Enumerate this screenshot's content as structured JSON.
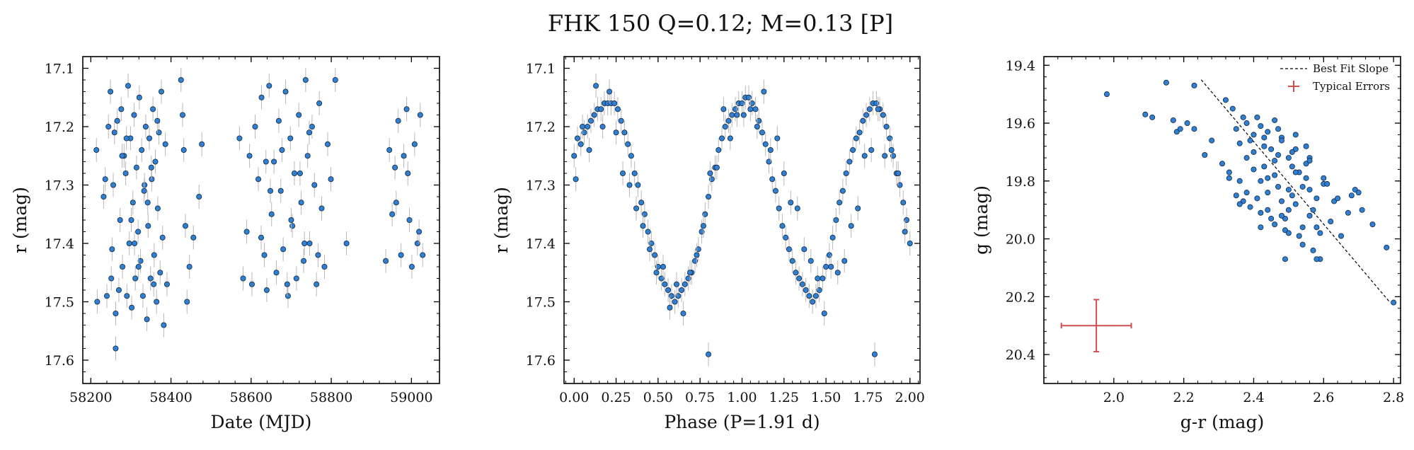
{
  "suptitle": "FHK 150  Q=0.12; M=0.13 [P]",
  "colors": {
    "point": "#2f7fd3",
    "error_bar": "#b8b8b8",
    "typical_error": "#d05050",
    "fit_line": "#000000"
  },
  "chart_data": [
    {
      "type": "scatter",
      "panel": "left",
      "xlabel": "Date (MJD)",
      "ylabel": "r (mag)",
      "xlim": [
        58180,
        59070
      ],
      "ylim": [
        17.64,
        17.08
      ],
      "y_inverted": true,
      "xticks": [
        58200,
        58400,
        58600,
        58800,
        59000
      ],
      "yticks": [
        17.1,
        17.2,
        17.3,
        17.4,
        17.5,
        17.6
      ],
      "x": [
        58214,
        58216,
        58232,
        58236,
        58240,
        58244,
        58249,
        58251,
        58253,
        58256,
        58259,
        58262,
        58266,
        58270,
        58273,
        58276,
        58279,
        58283,
        58287,
        58290,
        58293,
        58296,
        58299,
        58302,
        58305,
        58308,
        58311,
        58314,
        58318,
        58321,
        58324,
        58327,
        58330,
        58334,
        58337,
        58340,
        58343,
        58346,
        58349,
        58352,
        58355,
        58358,
        58361,
        58364,
        58367,
        58370,
        58373,
        58376,
        58379,
        58382,
        58386,
        58390,
        58262,
        58278,
        58301,
        58319,
        58333,
        58351,
        58366,
        58309,
        58342,
        58289,
        58357,
        58425,
        58429,
        58432,
        58436,
        58440,
        58446,
        58456,
        58470,
        58477,
        58571,
        58580,
        58589,
        58596,
        58602,
        58610,
        58618,
        58626,
        58633,
        58639,
        58645,
        58651,
        58657,
        58663,
        58669,
        58674,
        58680,
        58686,
        58692,
        58698,
        58703,
        58708,
        58713,
        58719,
        58725,
        58731,
        58736,
        58741,
        58746,
        58752,
        58758,
        58763,
        58770,
        58776,
        58783,
        58791,
        58799,
        58810,
        58625,
        58648,
        58677,
        58700,
        58722,
        58745,
        58767,
        58690,
        58637,
        58733,
        58838,
        58936,
        58945,
        58952,
        58959,
        58967,
        58974,
        58981,
        58988,
        58995,
        59001,
        59008,
        59015,
        59022,
        59028,
        58962,
        58991,
        59019
      ],
      "y": [
        17.24,
        17.5,
        17.32,
        17.29,
        17.49,
        17.2,
        17.14,
        17.46,
        17.41,
        17.3,
        17.21,
        17.52,
        17.19,
        17.48,
        17.36,
        17.17,
        17.44,
        17.25,
        17.28,
        17.49,
        17.13,
        17.4,
        17.22,
        17.51,
        17.33,
        17.18,
        17.46,
        17.27,
        17.38,
        17.15,
        17.43,
        17.24,
        17.49,
        17.3,
        17.2,
        17.53,
        17.37,
        17.22,
        17.46,
        17.29,
        17.17,
        17.42,
        17.26,
        17.5,
        17.34,
        17.21,
        17.45,
        17.14,
        17.39,
        17.54,
        17.23,
        17.47,
        17.58,
        17.25,
        17.36,
        17.44,
        17.31,
        17.27,
        17.19,
        17.4,
        17.33,
        17.22,
        17.47,
        17.12,
        17.18,
        17.24,
        17.37,
        17.5,
        17.44,
        17.39,
        17.32,
        17.23,
        17.22,
        17.46,
        17.38,
        17.25,
        17.47,
        17.2,
        17.29,
        17.15,
        17.42,
        17.48,
        17.13,
        17.35,
        17.26,
        17.45,
        17.19,
        17.31,
        17.41,
        17.14,
        17.49,
        17.22,
        17.37,
        17.28,
        17.46,
        17.18,
        17.33,
        17.43,
        17.12,
        17.25,
        17.4,
        17.2,
        17.3,
        17.47,
        17.16,
        17.34,
        17.44,
        17.23,
        17.29,
        17.12,
        17.39,
        17.31,
        17.24,
        17.36,
        17.28,
        17.21,
        17.42,
        17.47,
        17.26,
        17.4,
        17.4,
        17.43,
        17.24,
        17.35,
        17.27,
        17.19,
        17.42,
        17.25,
        17.17,
        17.36,
        17.44,
        17.23,
        17.4,
        17.18,
        17.42,
        17.33,
        17.28,
        17.38
      ]
    },
    {
      "type": "scatter",
      "panel": "middle",
      "xlabel": "Phase (P=1.91 d)",
      "ylabel": "r (mag)",
      "xlim": [
        -0.06,
        2.06
      ],
      "ylim": [
        17.64,
        17.08
      ],
      "y_inverted": true,
      "xticks": [
        0.0,
        0.25,
        0.5,
        0.75,
        1.0,
        1.25,
        1.5,
        1.75,
        2.0
      ],
      "xticklabels": [
        "0.00",
        "0.25",
        "0.50",
        "0.75",
        "1.00",
        "1.25",
        "1.50",
        "1.75",
        "2.00"
      ],
      "yticks": [
        17.1,
        17.2,
        17.3,
        17.4,
        17.5,
        17.6
      ],
      "x": [
        0.0,
        0.02,
        0.04,
        0.06,
        0.08,
        0.1,
        0.12,
        0.14,
        0.16,
        0.18,
        0.2,
        0.22,
        0.24,
        0.26,
        0.28,
        0.3,
        0.32,
        0.34,
        0.36,
        0.38,
        0.4,
        0.42,
        0.44,
        0.46,
        0.48,
        0.5,
        0.52,
        0.54,
        0.56,
        0.58,
        0.6,
        0.62,
        0.64,
        0.66,
        0.68,
        0.7,
        0.72,
        0.74,
        0.76,
        0.78,
        0.8,
        0.82,
        0.84,
        0.86,
        0.88,
        0.9,
        0.92,
        0.94,
        0.96,
        0.98,
        1.0,
        1.02,
        1.04,
        1.06,
        1.08,
        1.1,
        1.12,
        1.14,
        1.16,
        1.18,
        1.2,
        1.22,
        1.24,
        1.26,
        1.28,
        1.3,
        1.32,
        1.34,
        1.36,
        1.38,
        1.4,
        1.42,
        1.44,
        1.46,
        1.48,
        1.5,
        1.52,
        1.54,
        1.56,
        1.58,
        1.6,
        1.62,
        1.64,
        1.66,
        1.68,
        1.7,
        1.72,
        1.74,
        1.76,
        1.78,
        1.8,
        1.82,
        1.84,
        1.86,
        1.88,
        1.9,
        1.92,
        1.94,
        1.96,
        1.98,
        2.0,
        0.01,
        0.05,
        0.09,
        0.13,
        0.17,
        0.21,
        0.25,
        0.29,
        0.33,
        0.37,
        0.41,
        0.45,
        0.49,
        0.53,
        0.57,
        0.61,
        0.65,
        0.69,
        0.73,
        0.77,
        0.81,
        0.85,
        0.89,
        0.93,
        0.97,
        1.01,
        1.05,
        1.09,
        1.13,
        1.17,
        1.21,
        1.25,
        1.29,
        1.33,
        1.37,
        1.41,
        1.45,
        1.49,
        1.53,
        1.57,
        1.61,
        1.65,
        1.69,
        1.73,
        1.77,
        1.81,
        1.85,
        1.89,
        1.93,
        1.97,
        0.8,
        1.79
      ],
      "y": [
        17.25,
        17.22,
        17.23,
        17.21,
        17.2,
        17.19,
        17.18,
        17.17,
        17.17,
        17.16,
        17.16,
        17.16,
        17.16,
        17.17,
        17.19,
        17.21,
        17.23,
        17.25,
        17.28,
        17.3,
        17.33,
        17.35,
        17.38,
        17.4,
        17.42,
        17.44,
        17.46,
        17.47,
        17.48,
        17.49,
        17.5,
        17.49,
        17.48,
        17.47,
        17.46,
        17.45,
        17.43,
        17.41,
        17.38,
        17.35,
        17.32,
        17.29,
        17.27,
        17.24,
        17.22,
        17.2,
        17.19,
        17.18,
        17.17,
        17.16,
        17.16,
        17.15,
        17.15,
        17.16,
        17.17,
        17.19,
        17.21,
        17.23,
        17.26,
        17.29,
        17.31,
        17.34,
        17.37,
        17.39,
        17.41,
        17.43,
        17.45,
        17.46,
        17.47,
        17.48,
        17.49,
        17.5,
        17.49,
        17.48,
        17.46,
        17.44,
        17.42,
        17.39,
        17.36,
        17.33,
        17.31,
        17.28,
        17.26,
        17.24,
        17.22,
        17.21,
        17.19,
        17.18,
        17.17,
        17.16,
        17.16,
        17.17,
        17.18,
        17.2,
        17.22,
        17.25,
        17.28,
        17.3,
        17.33,
        17.36,
        17.4,
        17.29,
        17.2,
        17.24,
        17.13,
        17.2,
        17.14,
        17.21,
        17.28,
        17.3,
        17.34,
        17.37,
        17.41,
        17.45,
        17.44,
        17.51,
        17.47,
        17.52,
        17.45,
        17.42,
        17.37,
        17.28,
        17.27,
        17.17,
        17.22,
        17.18,
        17.18,
        17.17,
        17.2,
        17.14,
        17.24,
        17.22,
        17.28,
        17.33,
        17.34,
        17.41,
        17.43,
        17.46,
        17.52,
        17.44,
        17.45,
        17.43,
        17.37,
        17.34,
        17.25,
        17.24,
        17.17,
        17.25,
        17.24,
        17.28,
        17.38,
        17.59,
        17.59
      ]
    },
    {
      "type": "scatter",
      "panel": "right",
      "xlabel": "g-r (mag)",
      "ylabel": "g (mag)",
      "xlim": [
        1.8,
        2.82
      ],
      "ylim": [
        20.5,
        19.37
      ],
      "y_inverted": true,
      "xticks": [
        2.0,
        2.2,
        2.4,
        2.6,
        2.8
      ],
      "xticklabels": [
        "2.0",
        "2.2",
        "2.4",
        "2.6",
        "2.8"
      ],
      "yticks": [
        19.4,
        19.6,
        19.8,
        20.0,
        20.2,
        20.4
      ],
      "yticklabels": [
        "19.4",
        "19.6",
        "19.8",
        "20.0",
        "20.2",
        "20.4"
      ],
      "x": [
        1.98,
        2.09,
        2.11,
        2.15,
        2.17,
        2.18,
        2.19,
        2.21,
        2.23,
        2.23,
        2.26,
        2.28,
        2.31,
        2.32,
        2.33,
        2.34,
        2.35,
        2.36,
        2.37,
        2.38,
        2.39,
        2.4,
        2.41,
        2.42,
        2.43,
        2.44,
        2.45,
        2.46,
        2.47,
        2.48,
        2.49,
        2.5,
        2.51,
        2.52,
        2.53,
        2.54,
        2.55,
        2.56,
        2.57,
        2.58,
        2.59,
        2.6,
        2.62,
        2.63,
        2.65,
        2.68,
        2.69,
        2.71,
        2.74,
        2.78,
        2.8,
        2.36,
        2.38,
        2.4,
        2.42,
        2.44,
        2.46,
        2.48,
        2.5,
        2.52,
        2.54,
        2.56,
        2.58,
        2.4,
        2.43,
        2.47,
        2.51,
        2.55,
        2.6,
        2.35,
        2.39,
        2.45,
        2.49,
        2.53,
        2.57,
        2.41,
        2.44,
        2.48,
        2.52,
        2.56,
        2.37,
        2.42,
        2.46,
        2.5,
        2.54,
        2.59,
        2.38,
        2.43,
        2.47,
        2.51,
        2.55,
        2.61,
        2.64,
        2.67,
        2.7,
        2.33,
        2.36,
        2.49,
        2.58,
        2.46,
        2.52,
        2.44,
        2.5,
        2.56,
        2.42,
        2.48
      ],
      "y": [
        19.5,
        19.57,
        19.58,
        19.46,
        19.59,
        19.63,
        19.62,
        19.6,
        19.62,
        19.47,
        19.71,
        19.66,
        19.74,
        19.52,
        19.79,
        19.55,
        19.62,
        19.8,
        19.58,
        19.84,
        19.66,
        19.7,
        19.86,
        19.61,
        19.75,
        19.9,
        19.69,
        19.78,
        19.82,
        19.65,
        19.93,
        19.72,
        19.85,
        19.88,
        19.77,
        19.96,
        19.74,
        19.83,
        19.9,
        19.86,
        19.98,
        19.79,
        19.94,
        19.87,
        19.99,
        19.85,
        19.83,
        19.9,
        19.95,
        20.03,
        20.22,
        19.67,
        19.72,
        19.76,
        19.8,
        19.84,
        19.73,
        19.87,
        19.9,
        19.77,
        19.82,
        19.92,
        19.96,
        19.64,
        19.68,
        19.71,
        19.75,
        19.79,
        19.81,
        19.85,
        19.89,
        19.93,
        19.97,
        19.99,
        20.04,
        19.58,
        19.63,
        19.66,
        19.69,
        19.72,
        19.87,
        19.91,
        19.95,
        19.98,
        20.02,
        20.07,
        19.6,
        19.65,
        19.62,
        19.7,
        19.68,
        19.81,
        19.86,
        19.91,
        19.84,
        19.77,
        19.88,
        20.07,
        20.07,
        19.59,
        19.64,
        19.79,
        19.83,
        19.73,
        19.96,
        19.92
      ],
      "fit_line": {
        "x": [
          2.25,
          2.79
        ],
        "y": [
          19.45,
          20.22
        ],
        "label": "Best Fit Slope"
      },
      "typical_error": {
        "x": 1.95,
        "y": 20.3,
        "xerr": 0.1,
        "yerr": 0.09,
        "label": "Typical Errors"
      }
    }
  ]
}
